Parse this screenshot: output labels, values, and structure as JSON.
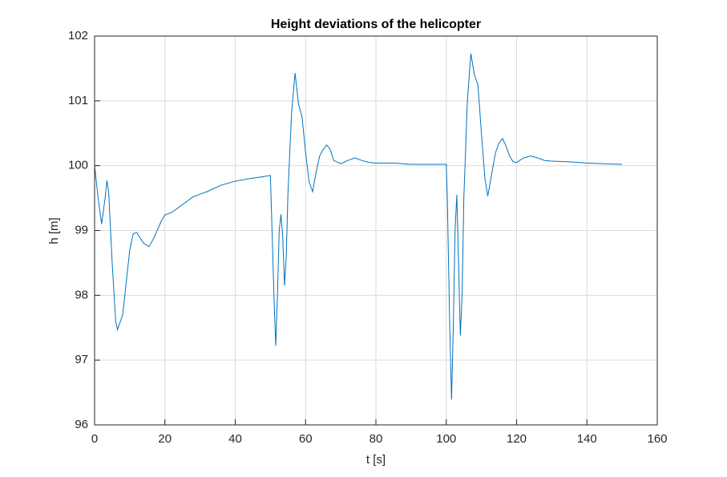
{
  "chart_data": {
    "type": "line",
    "title": "Height deviations of the helicopter",
    "x_label": "t [s]",
    "y_label": "h [m]",
    "xlim": [
      0,
      160
    ],
    "ylim": [
      96,
      102
    ],
    "xticks": [
      0,
      20,
      40,
      60,
      80,
      100,
      120,
      140,
      160
    ],
    "yticks": [
      96,
      97,
      98,
      99,
      100,
      101,
      102
    ],
    "grid": true,
    "x": [
      0,
      1,
      2,
      3,
      3.5,
      4,
      5,
      6,
      6.5,
      8,
      9,
      10,
      11,
      12,
      13,
      14,
      15.5,
      17,
      19,
      20,
      22,
      25,
      28,
      32,
      36,
      40,
      44,
      48,
      50,
      50.3,
      51,
      51.5,
      52,
      52.5,
      53,
      53.5,
      54,
      54.5,
      55,
      56,
      57,
      58,
      59,
      60,
      61,
      62,
      63,
      64,
      65,
      66,
      67,
      68,
      70,
      72,
      74,
      76,
      78,
      80,
      85,
      90,
      100,
      100.3,
      101,
      101.5,
      102,
      102.5,
      103,
      103.5,
      104,
      104.5,
      105,
      106,
      107,
      108,
      109,
      110,
      111,
      111.8,
      113,
      114,
      115,
      116,
      117,
      118,
      119,
      120,
      122,
      124,
      126,
      128,
      130,
      135,
      140,
      145,
      150
    ],
    "series": [
      {
        "name": "h",
        "color": "#0072bd",
        "values": [
          100.0,
          99.5,
          99.1,
          99.5,
          99.77,
          99.6,
          98.5,
          97.6,
          97.47,
          97.7,
          98.2,
          98.7,
          98.95,
          98.97,
          98.88,
          98.8,
          98.75,
          98.9,
          99.15,
          99.24,
          99.28,
          99.4,
          99.52,
          99.6,
          99.7,
          99.76,
          99.8,
          99.83,
          99.85,
          99.3,
          98.0,
          97.22,
          98.0,
          99.0,
          99.25,
          98.9,
          98.15,
          98.6,
          99.6,
          100.8,
          101.43,
          100.95,
          100.75,
          100.2,
          99.75,
          99.6,
          99.9,
          100.15,
          100.25,
          100.32,
          100.25,
          100.08,
          100.03,
          100.08,
          100.12,
          100.08,
          100.05,
          100.04,
          100.04,
          100.02,
          100.02,
          99.5,
          97.5,
          96.39,
          97.5,
          99.0,
          99.55,
          98.5,
          97.38,
          98.0,
          99.5,
          101.0,
          101.73,
          101.4,
          101.25,
          100.5,
          99.8,
          99.53,
          99.9,
          100.2,
          100.35,
          100.42,
          100.3,
          100.15,
          100.06,
          100.05,
          100.12,
          100.15,
          100.12,
          100.08,
          100.07,
          100.06,
          100.04,
          100.03,
          100.02
        ]
      }
    ]
  }
}
